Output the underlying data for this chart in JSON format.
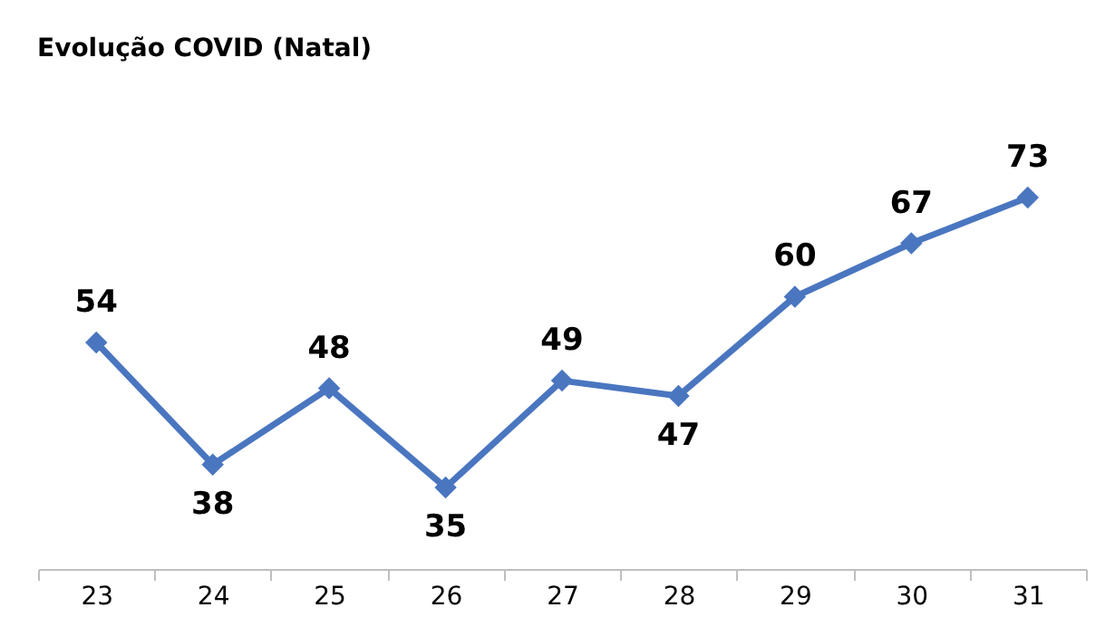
{
  "chart_data": {
    "type": "line",
    "title": "Evolução COVID (Natal)",
    "categories": [
      "23",
      "24",
      "25",
      "26",
      "27",
      "28",
      "29",
      "30",
      "31"
    ],
    "series": [
      {
        "color": "#4a76c0",
        "values": [
          54,
          38,
          48,
          35,
          49,
          47,
          60,
          67,
          73
        ]
      }
    ],
    "tick_labels": "x",
    "data_labels": true,
    "marker": "diamond",
    "line_style": "solid"
  }
}
